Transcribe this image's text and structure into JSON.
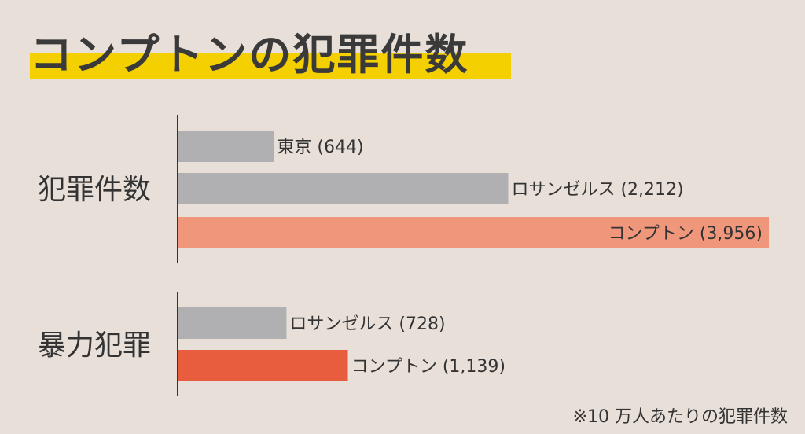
{
  "colors": {
    "background": "#e8e0d8",
    "title_highlight": "#f5d000",
    "other_city": "#b0b0b2",
    "compton_total": "#f0967a",
    "compton_violent": "#e85d3e",
    "axis": "#333333",
    "text": "#333333"
  },
  "title": "コンプトンの犯罪件数",
  "footnote": "※10 万人あたりの犯罪件数",
  "chart_data": {
    "type": "bar",
    "orientation": "horizontal",
    "unit": "per 100,000 people",
    "groups": [
      {
        "label": "犯罪件数",
        "bars": [
          {
            "name": "東京",
            "value": 644,
            "label": "東京 (644)",
            "color": "#b0b0b2"
          },
          {
            "name": "ロサンゼルス",
            "value": 2212,
            "label": "ロサンゼルス (2,212)",
            "color": "#b0b0b2"
          },
          {
            "name": "コンプトン",
            "value": 3956,
            "label": "コンプトン (3,956)",
            "color": "#f0967a",
            "label_inside": true
          }
        ]
      },
      {
        "label": "暴力犯罪",
        "bars": [
          {
            "name": "ロサンゼルス",
            "value": 728,
            "label": "ロサンゼルス (728)",
            "color": "#b0b0b2"
          },
          {
            "name": "コンプトン",
            "value": 1139,
            "label": "コンプトン (1,139)",
            "color": "#e85d3e"
          }
        ]
      }
    ],
    "xlim": [
      0,
      3956
    ],
    "grid": false,
    "legend": "none"
  }
}
